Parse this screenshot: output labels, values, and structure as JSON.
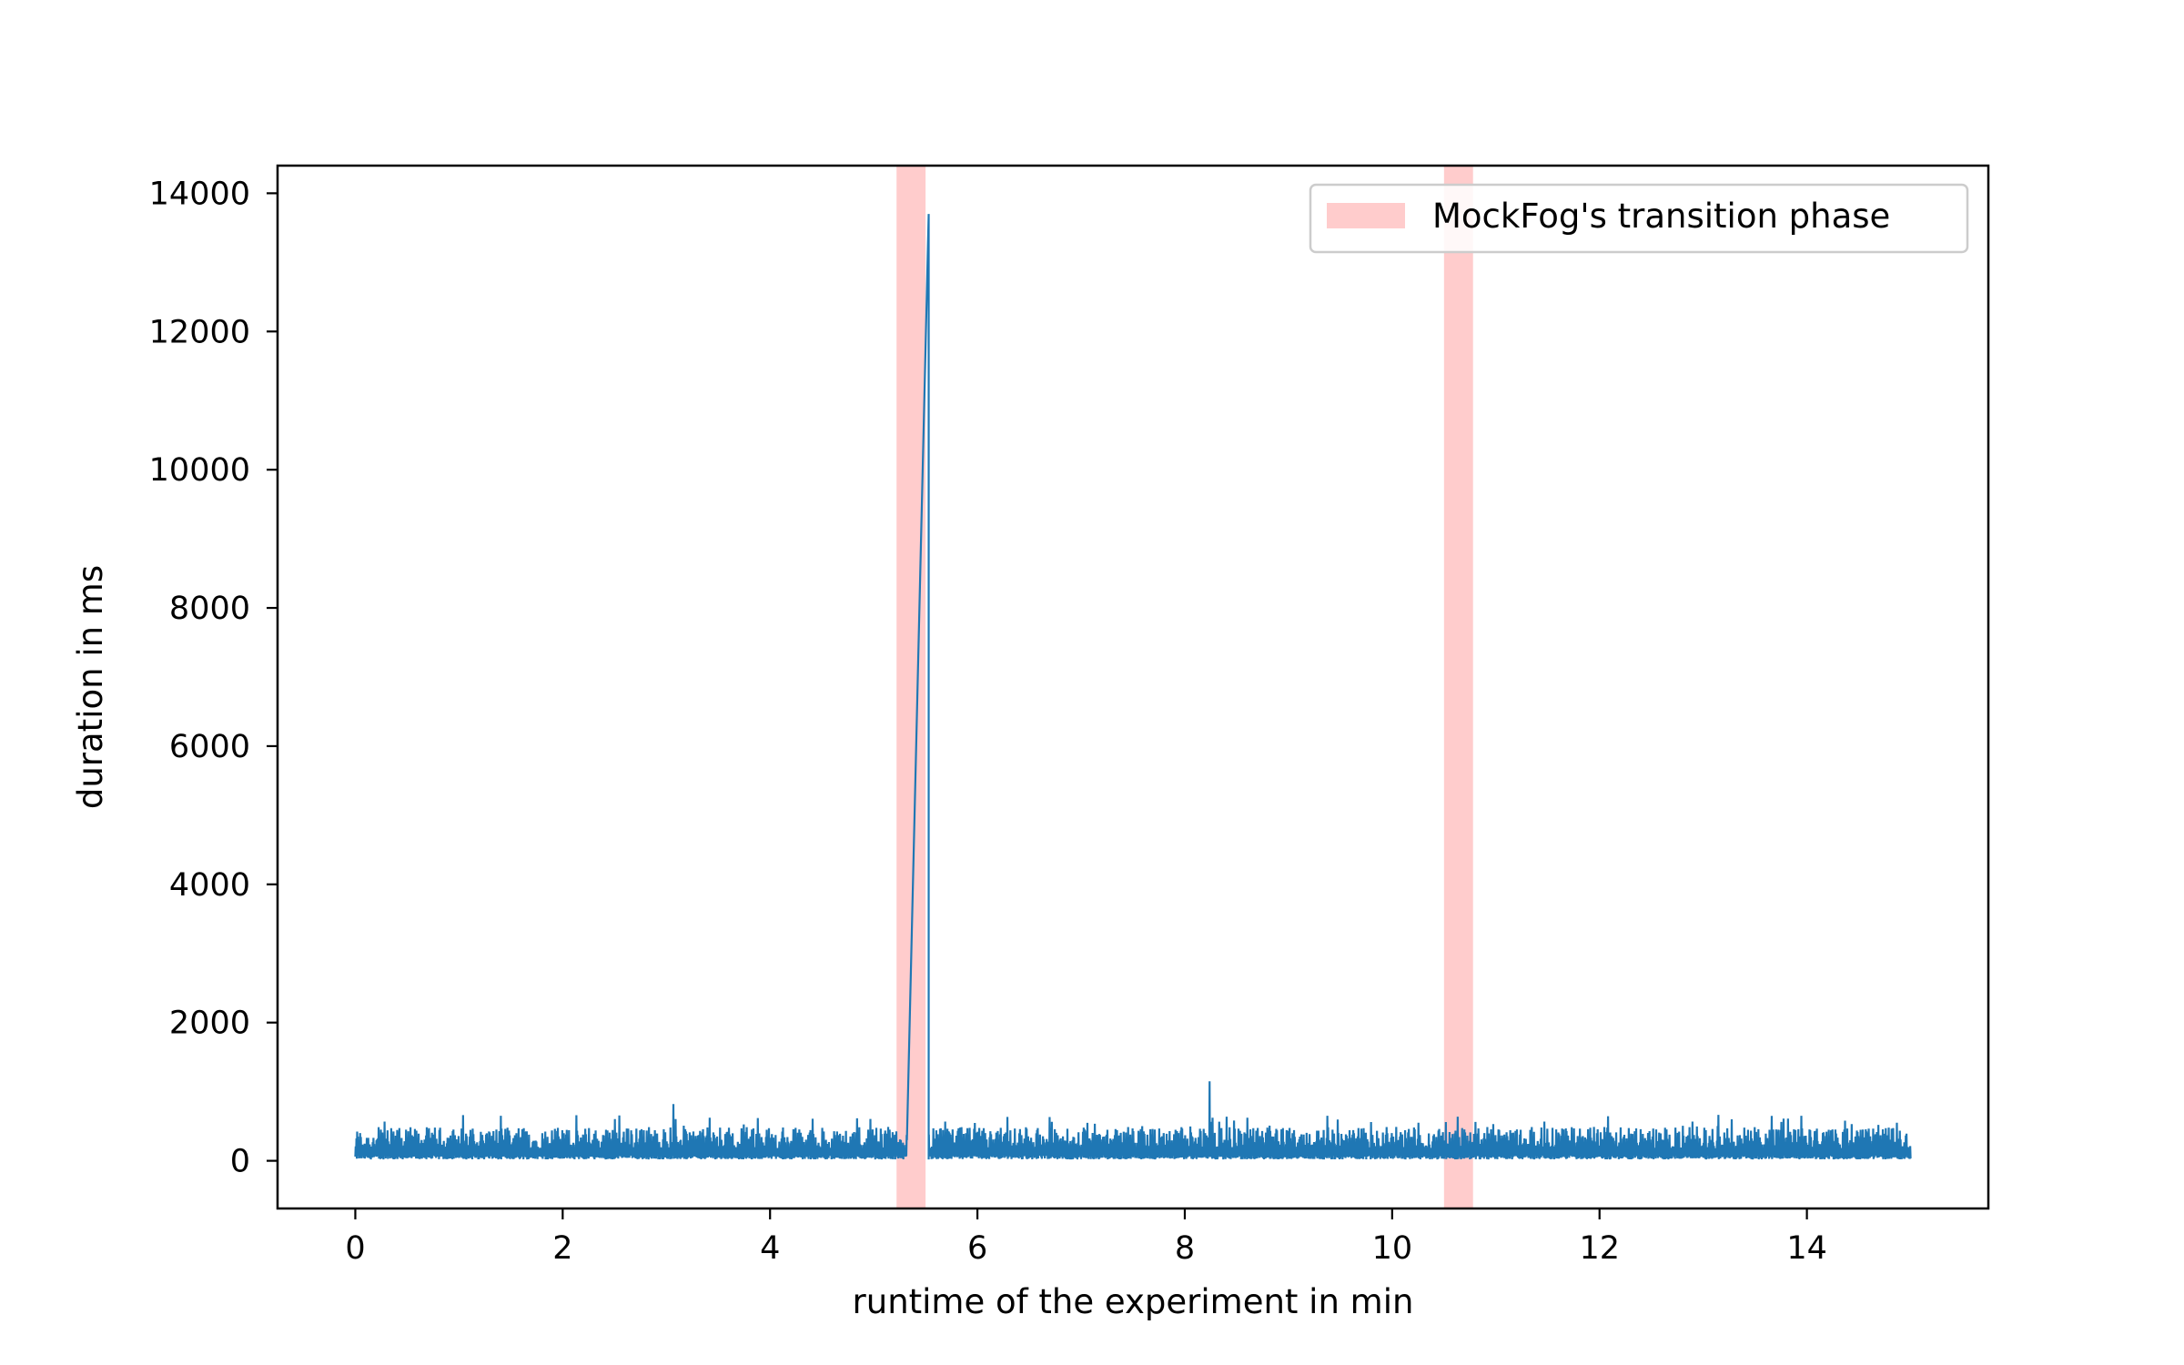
{
  "chart_data": {
    "type": "line",
    "title": "",
    "xlabel": "runtime of the experiment in min",
    "ylabel": "duration in ms",
    "xlim": [
      -0.75,
      15.75
    ],
    "ylim": [
      -690,
      14400
    ],
    "xticks": [
      0,
      2,
      4,
      6,
      8,
      10,
      12,
      14
    ],
    "yticks": [
      0,
      2000,
      4000,
      6000,
      8000,
      10000,
      12000,
      14000
    ],
    "grid": false,
    "legend_position": "top-right",
    "series_color": "#1f77b4",
    "shaded_color": "#ffcccc",
    "legend": [
      {
        "label": "MockFog's transition phase",
        "color": "#ffcccc"
      }
    ],
    "shaded_regions": [
      {
        "label": "MockFog's transition phase",
        "x_start": 5.22,
        "x_end": 5.5
      },
      {
        "label": "MockFog's transition phase",
        "x_start": 10.5,
        "x_end": 10.78
      }
    ],
    "series": [
      {
        "x_start": 0,
        "x_end": 15,
        "baseline_ms": 20,
        "typical_peak_ms": 350,
        "gap": [
          5.32,
          5.53
        ],
        "spike": {
          "x_from": 5.32,
          "y_from": 300,
          "x_to": 5.53,
          "y_to": 13700
        },
        "notable_peaks": [
          {
            "x": 0.35,
            "y": 750
          },
          {
            "x": 3.07,
            "y": 820
          },
          {
            "x": 4.13,
            "y": 820
          },
          {
            "x": 6.45,
            "y": 1400
          },
          {
            "x": 6.2,
            "y": 1070
          },
          {
            "x": 7.68,
            "y": 1070
          },
          {
            "x": 8.24,
            "y": 1150
          },
          {
            "x": 9.52,
            "y": 1230
          },
          {
            "x": 9.77,
            "y": 1070
          },
          {
            "x": 10.18,
            "y": 1250
          },
          {
            "x": 10.42,
            "y": 1680
          },
          {
            "x": 11.52,
            "y": 920
          },
          {
            "x": 13.6,
            "y": 780
          }
        ]
      }
    ]
  }
}
